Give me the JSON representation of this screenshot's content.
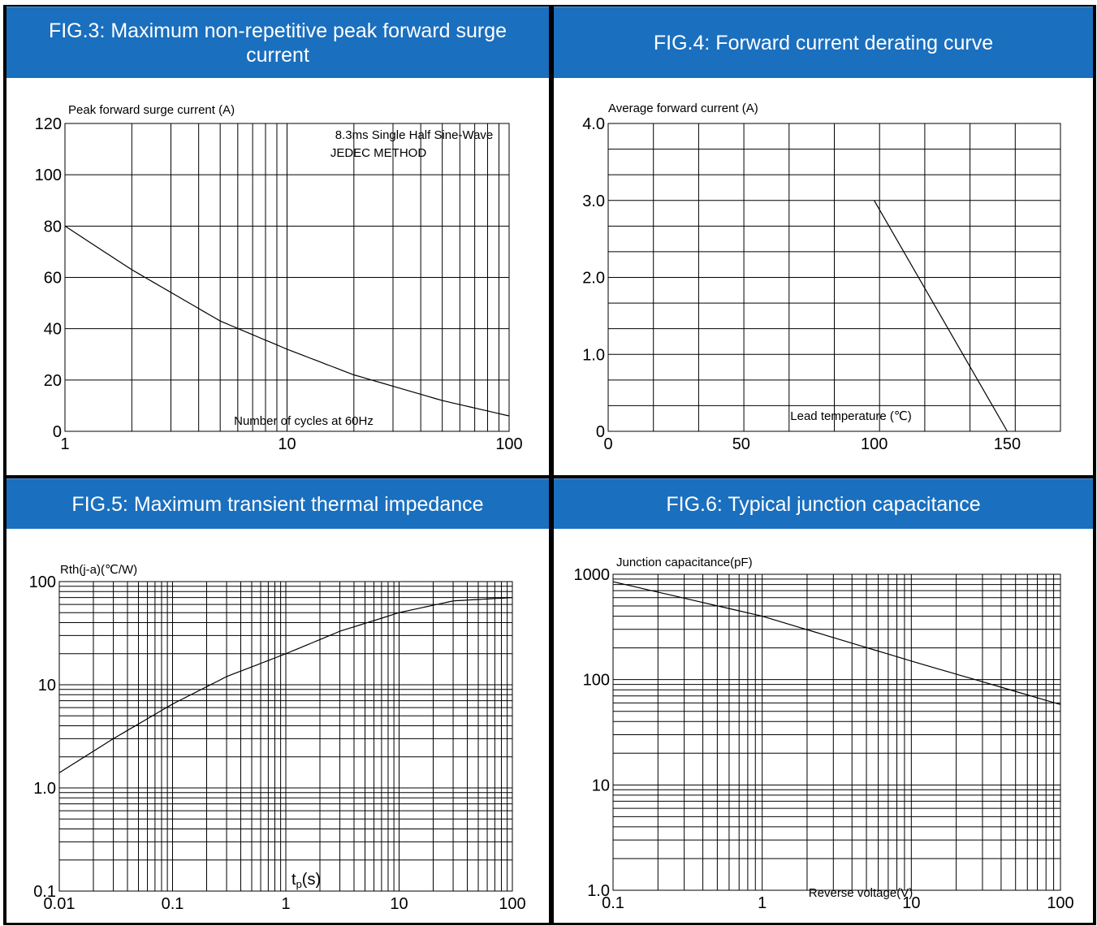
{
  "figures": [
    {
      "title": "FIG.3: Maximum non-repetitive peak forward surge current",
      "chart_data": {
        "type": "line",
        "xscale": "log",
        "yscale": "linear",
        "xlim": [
          1,
          100
        ],
        "ylim": [
          0,
          120
        ],
        "x_ticks": [
          1,
          10,
          100
        ],
        "x_tick_labels": [
          "1",
          "10",
          "100"
        ],
        "y_ticks": [
          0,
          20,
          40,
          60,
          80,
          100,
          120
        ],
        "y_tick_labels": [
          "0",
          "20",
          "40",
          "60",
          "80",
          "100",
          "120"
        ],
        "ylabel": "Peak forward surge current (A)",
        "xlabel": "Number of cycles at 60Hz",
        "annotation": [
          "8.3ms Single Half Sine-Wave",
          "JEDEC METHOD"
        ],
        "grid": true,
        "series": [
          {
            "x": [
              1,
              2,
              5,
              10,
              20,
              50,
              100
            ],
            "y": [
              80,
              63,
              43,
              32,
              22,
              12,
              6
            ]
          }
        ]
      }
    },
    {
      "title": "FIG.4: Forward current derating curve",
      "chart_data": {
        "type": "line",
        "xscale": "linear",
        "yscale": "linear",
        "xlim": [
          0,
          170
        ],
        "ylim": [
          0,
          4.0
        ],
        "x_ticks": [
          0,
          50,
          100,
          150
        ],
        "x_tick_labels": [
          "0",
          "50",
          "100",
          "150"
        ],
        "y_ticks": [
          0,
          1.0,
          2.0,
          3.0,
          4.0
        ],
        "y_tick_labels": [
          "0",
          "1.0",
          "2.0",
          "3.0",
          "4.0"
        ],
        "ylabel": "Average forward current (A)",
        "xlabel": "Lead temperature (℃)",
        "grid": true,
        "series": [
          {
            "x": [
              100,
              150
            ],
            "y": [
              3.0,
              0
            ]
          }
        ]
      }
    },
    {
      "title": "FIG.5: Maximum transient thermal impedance",
      "chart_data": {
        "type": "line",
        "xscale": "log",
        "yscale": "log",
        "xlim": [
          0.01,
          100
        ],
        "ylim": [
          0.1,
          100
        ],
        "x_ticks": [
          0.01,
          0.1,
          1,
          10,
          100
        ],
        "x_tick_labels": [
          "0.01",
          "0.1",
          "1",
          "10",
          "100"
        ],
        "y_ticks": [
          0.1,
          1,
          10,
          100
        ],
        "y_tick_labels": [
          "0.1",
          "1.0",
          "10",
          "100"
        ],
        "ylabel": "Rth(j-a)(℃/W)",
        "xlabel": "tp(s)",
        "grid": true,
        "series": [
          {
            "x": [
              0.01,
              0.03,
              0.1,
              0.3,
              1,
              3,
              10,
              30,
              100
            ],
            "y": [
              1.4,
              3.0,
              6.5,
              12,
              20,
              33,
              50,
              65,
              70
            ]
          }
        ]
      }
    },
    {
      "title": "FIG.6: Typical junction capacitance",
      "chart_data": {
        "type": "line",
        "xscale": "log",
        "yscale": "log",
        "xlim": [
          0.1,
          100
        ],
        "ylim": [
          1.0,
          1000
        ],
        "x_ticks": [
          0.1,
          1,
          10,
          100
        ],
        "x_tick_labels": [
          "0.1",
          "1",
          "10",
          "100"
        ],
        "y_ticks": [
          1,
          10,
          100,
          1000
        ],
        "y_tick_labels": [
          "1.0",
          "10",
          "100",
          "1000"
        ],
        "ylabel": "Junction capacitance(pF)",
        "xlabel": "Reverse voltage(V)",
        "grid": true,
        "series": [
          {
            "x": [
              0.1,
              1,
              10,
              100
            ],
            "y": [
              850,
              400,
              150,
              58
            ]
          }
        ]
      }
    }
  ]
}
